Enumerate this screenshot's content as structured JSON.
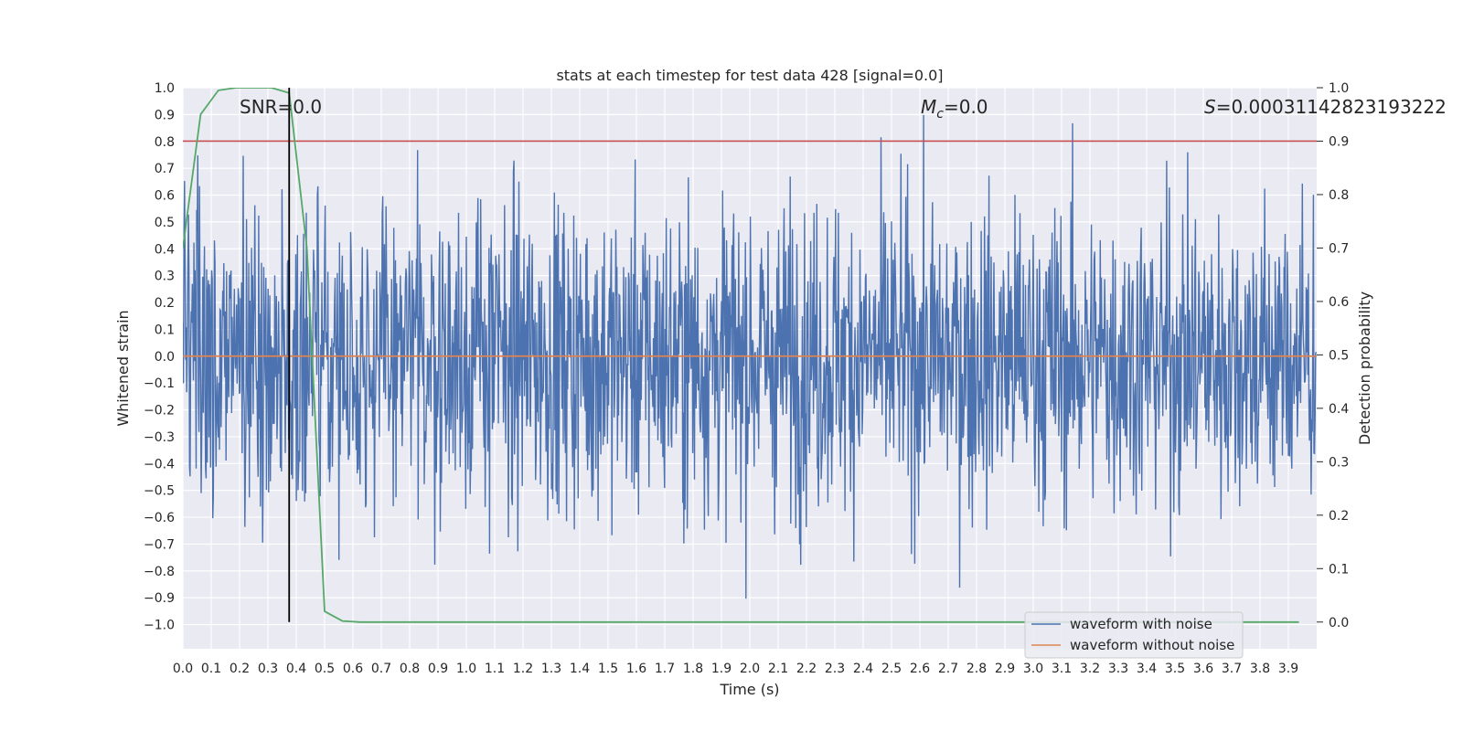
{
  "chart_data": {
    "type": "line",
    "title": "stats at each timestep for test data 428 [signal=0.0]",
    "xlabel": "Time (s)",
    "ylabel": "Whitened strain",
    "ylabel_right": "Detection probability",
    "xlim": [
      0.0,
      4.0
    ],
    "ylim": [
      -1.09,
      1.0
    ],
    "ylim_right": [
      -0.05,
      1.0
    ],
    "xticks": [
      "0.0",
      "0.1",
      "0.2",
      "0.3",
      "0.4",
      "0.5",
      "0.6",
      "0.7",
      "0.8",
      "0.9",
      "1.0",
      "1.1",
      "1.2",
      "1.3",
      "1.4",
      "1.5",
      "1.6",
      "1.7",
      "1.8",
      "1.9",
      "2.0",
      "2.1",
      "2.2",
      "2.3",
      "2.4",
      "2.5",
      "2.6",
      "2.7",
      "2.8",
      "2.9",
      "3.0",
      "3.1",
      "3.2",
      "3.3",
      "3.4",
      "3.5",
      "3.6",
      "3.7",
      "3.8",
      "3.9"
    ],
    "yticks": [
      "1.0",
      "0.9",
      "0.8",
      "0.7",
      "0.6",
      "0.5",
      "0.4",
      "0.3",
      "0.2",
      "0.1",
      "0.0",
      "−0.1",
      "−0.2",
      "−0.3",
      "−0.4",
      "−0.5",
      "−0.6",
      "−0.7",
      "−0.8",
      "−0.9",
      "−1.0"
    ],
    "yticks_right": [
      "1.0",
      "0.9",
      "0.8",
      "0.7",
      "0.6",
      "0.5",
      "0.4",
      "0.3",
      "0.2",
      "0.1",
      "0.0"
    ],
    "annotations": {
      "snr": "SNR=0.0",
      "mc_symbol": "M",
      "mc_sub": "c",
      "mc_value": "=0.0",
      "s_symbol": "S",
      "s_value": "=0.00031142823193222"
    },
    "threshold": 0.9,
    "marker_time": 0.375,
    "series": [
      {
        "name": "waveform with noise",
        "color": "#4c72b0",
        "noise_amplitude": 0.3,
        "samples": 2048,
        "peak_max": 0.91,
        "peak_min": -1.0
      },
      {
        "name": "waveform without noise",
        "color": "#dd8452",
        "values_constant": 0.0
      },
      {
        "name": "detection probability",
        "color": "#55a868",
        "axis": "right",
        "x": [
          0.0,
          0.0625,
          0.125,
          0.1875,
          0.25,
          0.3125,
          0.375,
          0.4375,
          0.5,
          0.5625,
          0.625,
          0.6875,
          0.75,
          1.0,
          2.0,
          3.0,
          3.9375
        ],
        "values": [
          0.7,
          0.95,
          0.995,
          1.0,
          1.0,
          1.0,
          0.99,
          0.7,
          0.02,
          0.002,
          0.0,
          0.0,
          0.0,
          0.0,
          0.0,
          0.0,
          0.0
        ]
      }
    ],
    "threshold_color": "#c44e52",
    "marker_color": "#000000",
    "legend": {
      "location": "lower-right",
      "entries": [
        "waveform with noise",
        "waveform without noise"
      ]
    }
  }
}
